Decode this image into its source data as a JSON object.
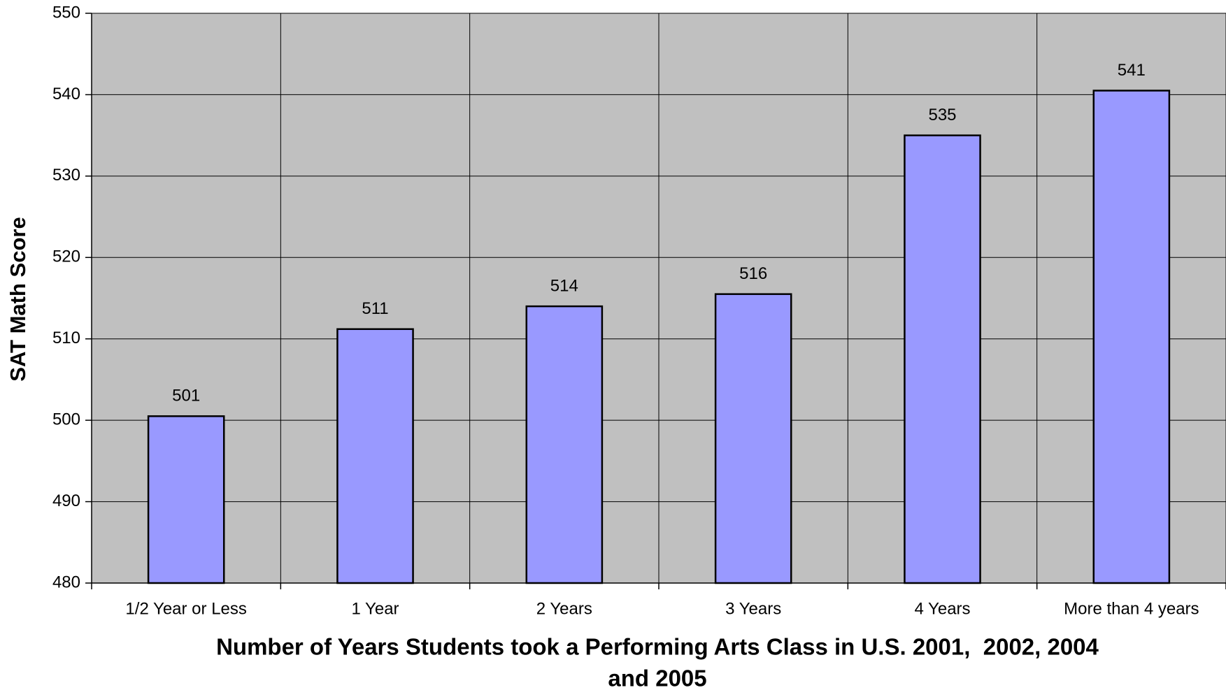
{
  "chart_data": {
    "type": "bar",
    "xlabel": [
      "Number of Years Students took a Performing Arts Class in U.S. 2001,  2002, 2004",
      "and 2005"
    ],
    "ylabel": "SAT Math Score",
    "categories": [
      "1/2 Year or Less",
      "1 Year",
      "2 Years",
      "3 Years",
      "4 Years",
      "More than 4 years"
    ],
    "values": [
      500.5,
      511.2,
      514,
      515.5,
      535,
      540.5
    ],
    "value_labels": [
      "501",
      "511",
      "514",
      "516",
      "535",
      "541"
    ],
    "color": "#9999ff",
    "ylim": [
      480,
      550
    ],
    "yticks": [
      480,
      490,
      500,
      510,
      520,
      530,
      540,
      550
    ],
    "grid": true
  }
}
